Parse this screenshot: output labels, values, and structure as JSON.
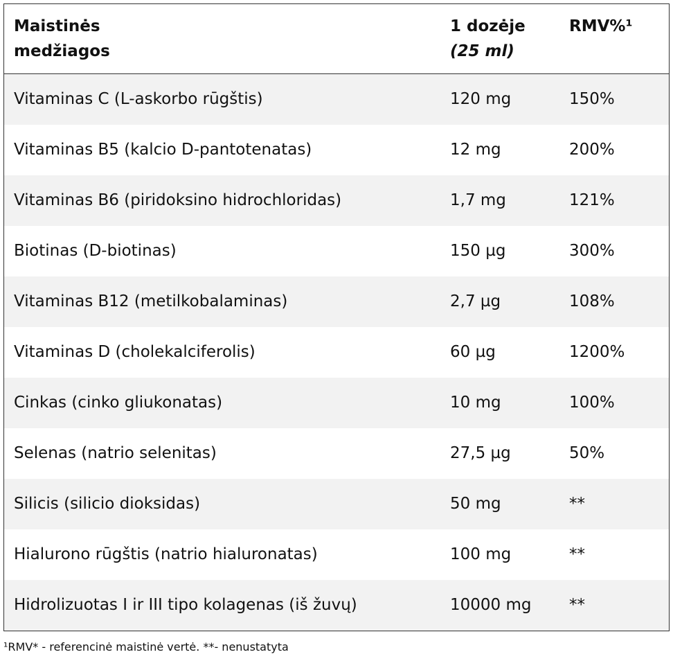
{
  "table": {
    "header": {
      "ingredient": [
        "Maistinės",
        "medžiagos"
      ],
      "dose": [
        "1 dozėje",
        "(25 ml)"
      ],
      "rmv": "RMV%¹"
    },
    "rows": [
      [
        "Vitaminas C (L-askorbo rūgštis)",
        "120 mg",
        "150%"
      ],
      [
        "Vitaminas B5 (kalcio D-pantotenatas)",
        "12 mg",
        "200%"
      ],
      [
        "Vitaminas B6 (piridoksino hidrochloridas)",
        "1,7 mg",
        "121%"
      ],
      [
        "Biotinas (D-biotinas)",
        "150 µg",
        "300%"
      ],
      [
        "Vitaminas B12 (metilkobalaminas)",
        "2,7 µg",
        "108%"
      ],
      [
        "Vitaminas D (cholekalciferolis)",
        "60 µg",
        "1200%"
      ],
      [
        "Cinkas (cinko gliukonatas)",
        "10 mg",
        "100%"
      ],
      [
        "Selenas (natrio selenitas)",
        "27,5 µg",
        "50%"
      ],
      [
        "Silicis (silicio dioksidas)",
        "50 mg",
        "**"
      ],
      [
        "Hialurono rūgštis (natrio hialuronatas)",
        "100 mg",
        "**"
      ],
      [
        "Hidrolizuotas I ir III tipo kolagenas (iš žuvų)",
        "10000 mg",
        "**"
      ]
    ]
  },
  "footnote": "¹RMV* - referencinė maistinė vertė. **- nenustatyta"
}
